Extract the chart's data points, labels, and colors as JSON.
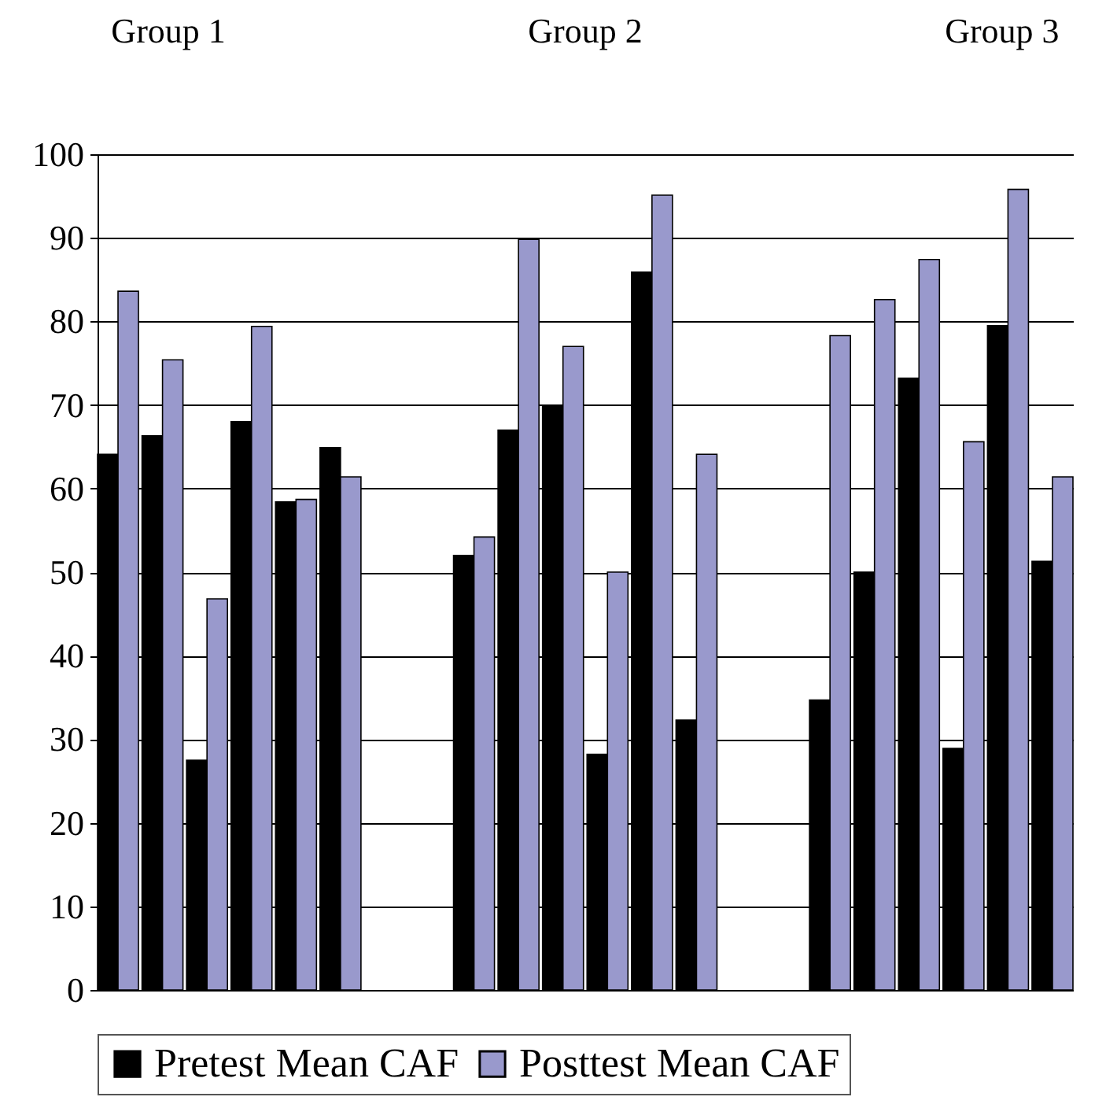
{
  "chart_data": {
    "type": "bar",
    "categories": [
      null,
      null,
      null,
      null,
      null,
      null,
      null,
      null,
      null,
      null,
      null,
      null,
      null,
      null,
      null,
      null,
      null,
      null,
      null,
      null,
      null,
      null
    ],
    "series": [
      {
        "name": "Pretest Mean CAF",
        "color": "#000000",
        "values": [
          64.1,
          66.3,
          27.5,
          68.0,
          58.4,
          64.9,
          null,
          null,
          52.0,
          67.0,
          69.8,
          28.2,
          85.9,
          32.3,
          null,
          null,
          34.7,
          50.0,
          73.2,
          28.9,
          79.5,
          51.3
        ]
      },
      {
        "name": "Posttest Mean CAF",
        "color": "#9999cc",
        "values": [
          83.6,
          75.4,
          46.8,
          79.4,
          58.7,
          61.4,
          null,
          null,
          54.2,
          89.8,
          77.0,
          50.0,
          95.1,
          64.1,
          null,
          null,
          78.3,
          82.6,
          87.4,
          65.6,
          95.8,
          61.4
        ]
      }
    ],
    "annotations": [
      "Group 1",
      "Group 2",
      "Group 3"
    ],
    "ylim": [
      0,
      100
    ],
    "yticks": [
      0,
      10,
      20,
      30,
      40,
      50,
      60,
      70,
      80,
      90,
      100
    ],
    "grid": "y",
    "legend": "bottom",
    "tick_labels": "y"
  }
}
